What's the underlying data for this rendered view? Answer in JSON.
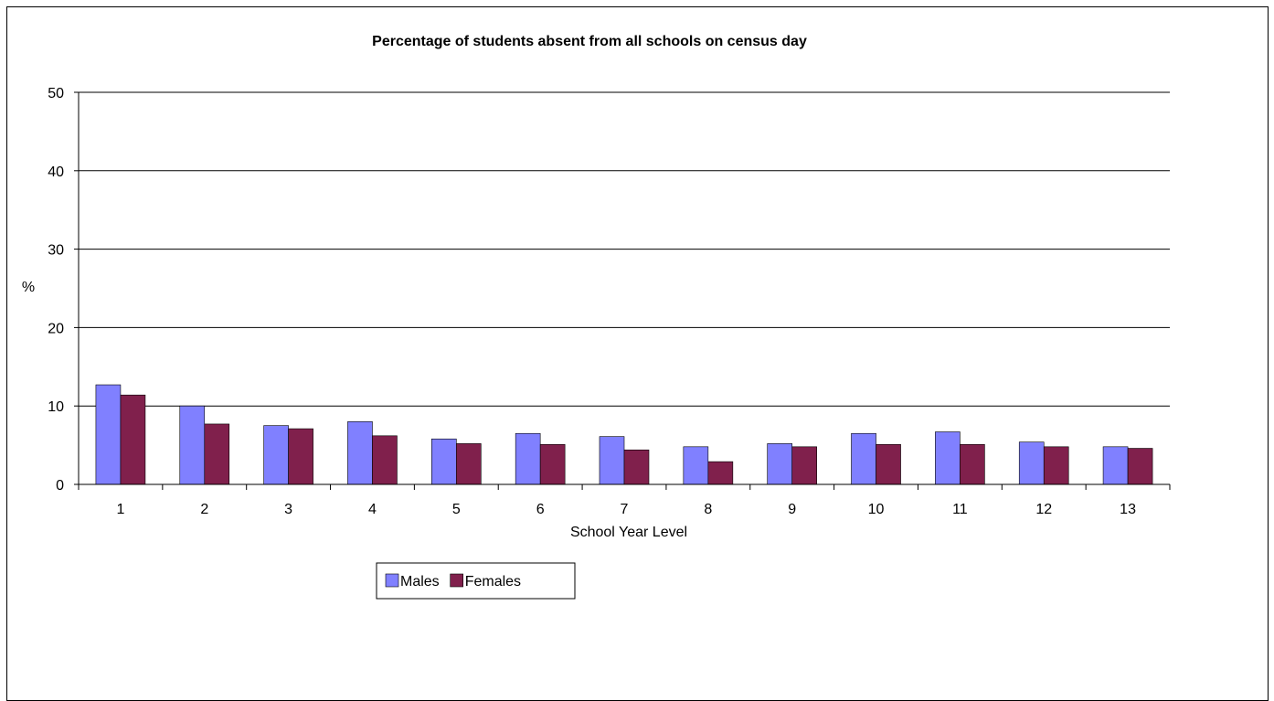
{
  "chart_data": {
    "type": "bar",
    "title": "Percentage of students absent from all schools on census day",
    "xlabel": "School Year Level",
    "ylabel": "%",
    "categories": [
      "1",
      "2",
      "3",
      "4",
      "5",
      "6",
      "7",
      "8",
      "9",
      "10",
      "11",
      "12",
      "13"
    ],
    "series": [
      {
        "name": "Males",
        "color": "#8080ff",
        "values": [
          12.7,
          10.0,
          7.5,
          8.0,
          5.8,
          6.5,
          6.1,
          4.8,
          5.2,
          6.5,
          6.7,
          5.4,
          4.8
        ]
      },
      {
        "name": "Females",
        "color": "#80204c",
        "values": [
          11.4,
          7.7,
          7.1,
          6.2,
          5.2,
          5.1,
          4.4,
          2.9,
          4.8,
          5.1,
          5.1,
          4.8,
          4.6
        ]
      }
    ],
    "ylim": [
      0,
      50
    ],
    "yticks": [
      0,
      10,
      20,
      30,
      40,
      50
    ],
    "grid": true,
    "legend_position": "bottom"
  }
}
